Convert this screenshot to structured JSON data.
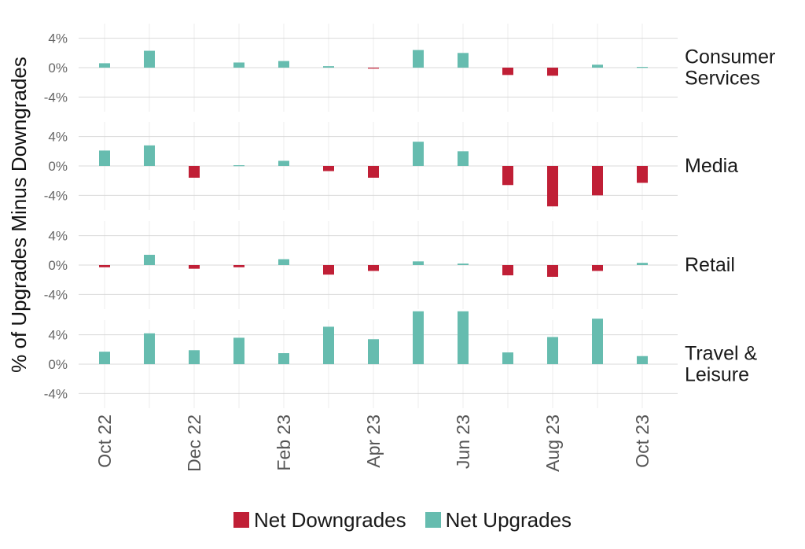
{
  "chart_data": {
    "type": "bar",
    "ylabel": "% of Upgrades Minus Downgrades",
    "ylim": [
      -6,
      6
    ],
    "y_ticks": [
      -4,
      0,
      4
    ],
    "y_tick_labels": [
      "-4%",
      "0%",
      "4%"
    ],
    "grid": true,
    "months": [
      "Oct 22",
      "Nov 22",
      "Dec 22",
      "Jan 23",
      "Feb 23",
      "Mar 23",
      "Apr 23",
      "May 23",
      "Jun 23",
      "Jul 23",
      "Aug 23",
      "Sep 23",
      "Oct 23"
    ],
    "x_tick_labels": [
      "Oct 22",
      "Dec 22",
      "Feb 23",
      "Apr 23",
      "Jun 23",
      "Aug 23",
      "Oct 23"
    ],
    "legend_position": "bottom",
    "legend": [
      {
        "label": "Net Downgrades",
        "color": "#c01f36"
      },
      {
        "label": "Net Upgrades",
        "color": "#66bcaf"
      }
    ],
    "panels": [
      {
        "name": "Consumer Services",
        "label_lines": [
          "Consumer",
          "Services"
        ],
        "values": [
          0.6,
          2.3,
          0,
          0.7,
          0.9,
          0.2,
          -0.1,
          2.4,
          2.0,
          -1.0,
          -1.1,
          0.4,
          0.1
        ]
      },
      {
        "name": "Media",
        "label_lines": [
          "Media"
        ],
        "values": [
          2.1,
          2.8,
          -1.6,
          0.1,
          0.7,
          -0.7,
          -1.6,
          3.3,
          2.0,
          -2.6,
          -5.5,
          -4.0,
          -2.3
        ]
      },
      {
        "name": "Retail",
        "label_lines": [
          "Retail"
        ],
        "values": [
          -0.3,
          1.4,
          -0.5,
          -0.3,
          0.8,
          -1.3,
          -0.8,
          0.5,
          0.2,
          -1.4,
          -1.6,
          -0.8,
          0.3
        ]
      },
      {
        "name": "Travel & Leisure",
        "label_lines": [
          "Travel &",
          "Leisure"
        ],
        "values": [
          1.7,
          4.2,
          1.9,
          3.6,
          1.5,
          5.1,
          3.4,
          7.2,
          7.2,
          1.6,
          3.7,
          6.2,
          1.1
        ]
      }
    ]
  }
}
